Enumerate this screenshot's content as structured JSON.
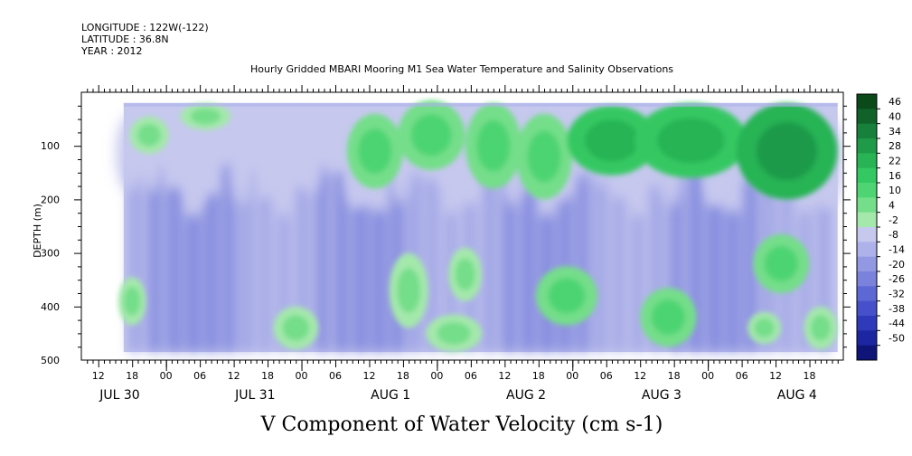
{
  "header": {
    "longitude": "LONGITUDE : 122W(-122)",
    "latitude": "LATITUDE : 36.8N",
    "year": "YEAR : 2012"
  },
  "chart_data": {
    "type": "heatmap",
    "title": "Hourly Gridded MBARI Mooring M1 Sea Water Temperature and Salinity Observations",
    "xlabel": "V Component of Water Velocity (cm s-1)",
    "ylabel": "DEPTH (m)",
    "x_range_hours": [
      0,
      135
    ],
    "ylim": [
      500,
      0
    ],
    "y_ticks": [
      "100",
      "200",
      "300",
      "400",
      "500"
    ],
    "y_tick_values": [
      100,
      200,
      300,
      400,
      500
    ],
    "x_tick_labels": [
      {
        "label": "12",
        "hour": 3
      },
      {
        "label": "18",
        "hour": 9
      },
      {
        "label": "00",
        "hour": 15
      },
      {
        "label": "06",
        "hour": 21
      },
      {
        "label": "12",
        "hour": 27
      },
      {
        "label": "18",
        "hour": 33
      },
      {
        "label": "00",
        "hour": 39
      },
      {
        "label": "06",
        "hour": 45
      },
      {
        "label": "12",
        "hour": 51
      },
      {
        "label": "18",
        "hour": 57
      },
      {
        "label": "00",
        "hour": 63
      },
      {
        "label": "06",
        "hour": 69
      },
      {
        "label": "12",
        "hour": 75
      },
      {
        "label": "18",
        "hour": 81
      },
      {
        "label": "00",
        "hour": 87
      },
      {
        "label": "06",
        "hour": 93
      },
      {
        "label": "12",
        "hour": 99
      },
      {
        "label": "18",
        "hour": 105
      },
      {
        "label": "00",
        "hour": 111
      },
      {
        "label": "06",
        "hour": 117
      },
      {
        "label": "12",
        "hour": 123
      },
      {
        "label": "18",
        "hour": 129
      }
    ],
    "day_labels": [
      {
        "label": "JUL 30",
        "hour": 6
      },
      {
        "label": "JUL 31",
        "hour": 30
      },
      {
        "label": "AUG  1",
        "hour": 54
      },
      {
        "label": "AUG  2",
        "hour": 78
      },
      {
        "label": "AUG  3",
        "hour": 102
      },
      {
        "label": "AUG  4",
        "hour": 126
      }
    ],
    "day_boundaries_hours": [
      15,
      39,
      63,
      87,
      111
    ],
    "data_extent": {
      "hour_start": 7.5,
      "hour_end": 134,
      "depth_top": 20,
      "depth_bottom": 485
    },
    "colorbar": {
      "labels": [
        "46",
        "40",
        "34",
        "28",
        "22",
        "16",
        "10",
        "4",
        "-2",
        "-8",
        "-14",
        "-20",
        "-26",
        "-32",
        "-38",
        "-44",
        "-50"
      ],
      "colors": [
        "#0a4a1a",
        "#10622a",
        "#17803a",
        "#1f9a48",
        "#28b455",
        "#34c862",
        "#4ed472",
        "#74de8a",
        "#a4e8ac",
        "#c6c8ee",
        "#aeb2ea",
        "#9298e2",
        "#7a82dc",
        "#5e68d4",
        "#4550ca",
        "#2e3aba",
        "#1c26a0",
        "#0e1478"
      ]
    },
    "green_regions": [
      {
        "center_hour": 12,
        "center_depth": 80,
        "width_hours": 5,
        "height_m": 70,
        "value": 8
      },
      {
        "center_hour": 22,
        "center_depth": 45,
        "width_hours": 7,
        "height_m": 50,
        "value": 8
      },
      {
        "center_hour": 52,
        "center_depth": 110,
        "width_hours": 8,
        "height_m": 140,
        "value": 10
      },
      {
        "center_hour": 62,
        "center_depth": 80,
        "width_hours": 10,
        "height_m": 130,
        "value": 12
      },
      {
        "center_hour": 73,
        "center_depth": 100,
        "width_hours": 8,
        "height_m": 160,
        "value": 14
      },
      {
        "center_hour": 82,
        "center_depth": 120,
        "width_hours": 8,
        "height_m": 160,
        "value": 14
      },
      {
        "center_hour": 94,
        "center_depth": 90,
        "width_hours": 14,
        "height_m": 130,
        "value": 22
      },
      {
        "center_hour": 108,
        "center_depth": 90,
        "width_hours": 18,
        "height_m": 140,
        "value": 26
      },
      {
        "center_hour": 125,
        "center_depth": 110,
        "width_hours": 16,
        "height_m": 180,
        "value": 30
      },
      {
        "center_hour": 9,
        "center_depth": 390,
        "width_hours": 3,
        "height_m": 90,
        "value": 6
      },
      {
        "center_hour": 38,
        "center_depth": 440,
        "width_hours": 6,
        "height_m": 80,
        "value": 6
      },
      {
        "center_hour": 58,
        "center_depth": 370,
        "width_hours": 5,
        "height_m": 140,
        "value": 8
      },
      {
        "center_hour": 68,
        "center_depth": 340,
        "width_hours": 4,
        "height_m": 100,
        "value": 8
      },
      {
        "center_hour": 66,
        "center_depth": 450,
        "width_hours": 8,
        "height_m": 70,
        "value": 8
      },
      {
        "center_hour": 86,
        "center_depth": 380,
        "width_hours": 9,
        "height_m": 110,
        "value": 10
      },
      {
        "center_hour": 104,
        "center_depth": 420,
        "width_hours": 8,
        "height_m": 110,
        "value": 10
      },
      {
        "center_hour": 124,
        "center_depth": 320,
        "width_hours": 8,
        "height_m": 110,
        "value": 10
      },
      {
        "center_hour": 121,
        "center_depth": 440,
        "width_hours": 4,
        "height_m": 60,
        "value": 6
      },
      {
        "center_hour": 131,
        "center_depth": 440,
        "width_hours": 4,
        "height_m": 80,
        "value": 6
      }
    ]
  }
}
